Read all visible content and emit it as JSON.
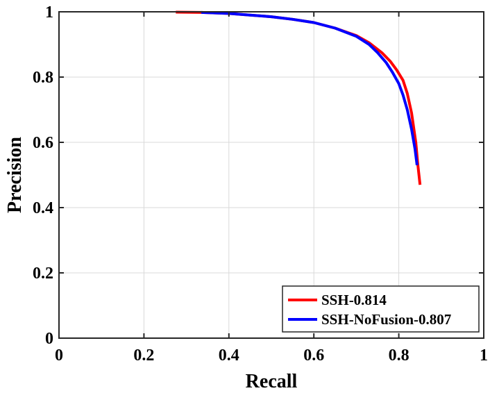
{
  "chart_data": {
    "type": "line",
    "title": "",
    "xlabel": "Recall",
    "ylabel": "Precision",
    "xlim": [
      0,
      1
    ],
    "ylim": [
      0,
      1
    ],
    "x_ticks": [
      "0",
      "0.2",
      "0.4",
      "0.6",
      "0.8",
      "1"
    ],
    "y_ticks": [
      "0",
      "0.2",
      "0.4",
      "0.6",
      "0.8",
      "1"
    ],
    "grid": true,
    "legend_position": "bottom-right",
    "series": [
      {
        "name": "SSH-0.814",
        "color": "#ff0000",
        "x": [
          0.275,
          0.335,
          0.4,
          0.45,
          0.5,
          0.55,
          0.6,
          0.65,
          0.7,
          0.73,
          0.76,
          0.78,
          0.795,
          0.81,
          0.82,
          0.83,
          0.84,
          0.845,
          0.85
        ],
        "y": [
          0.999,
          0.998,
          0.995,
          0.99,
          0.985,
          0.977,
          0.967,
          0.95,
          0.927,
          0.905,
          0.875,
          0.848,
          0.822,
          0.79,
          0.75,
          0.69,
          0.6,
          0.53,
          0.47
        ]
      },
      {
        "name": "SSH-NoFusion-0.807",
        "color": "#0000ff",
        "x": [
          0.335,
          0.4,
          0.45,
          0.5,
          0.55,
          0.6,
          0.65,
          0.7,
          0.73,
          0.75,
          0.77,
          0.785,
          0.8,
          0.81,
          0.82,
          0.83,
          0.838,
          0.843
        ],
        "y": [
          0.998,
          0.995,
          0.99,
          0.985,
          0.977,
          0.967,
          0.95,
          0.925,
          0.9,
          0.875,
          0.845,
          0.815,
          0.78,
          0.745,
          0.7,
          0.64,
          0.58,
          0.53
        ]
      }
    ]
  }
}
